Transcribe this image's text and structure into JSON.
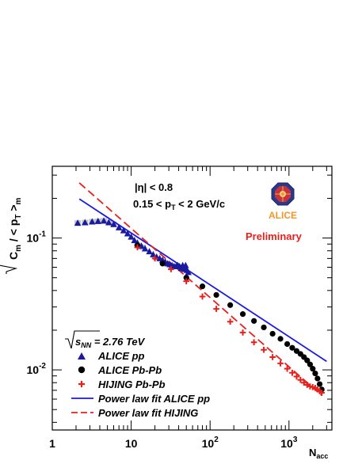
{
  "chart_data": {
    "type": "scatter",
    "xscale": "log",
    "yscale": "log",
    "xlim": [
      1,
      3500
    ],
    "ylim": [
      0.0035,
      0.35
    ],
    "xlabel": "N",
    "xlabel_sub": "acc",
    "ylabel_parts": [
      "C",
      "m",
      " / < p",
      "T",
      " >",
      "m"
    ],
    "x_ticks": [
      {
        "value": 1,
        "label": "1",
        "sup": ""
      },
      {
        "value": 10,
        "label": "10",
        "sup": ""
      },
      {
        "value": 100,
        "label": "10",
        "sup": "2"
      },
      {
        "value": 1000,
        "label": "10",
        "sup": "3"
      }
    ],
    "y_ticks": [
      {
        "value": 0.01,
        "label": "10",
        "sup": "-2"
      },
      {
        "value": 0.1,
        "label": "10",
        "sup": "-1"
      }
    ],
    "annotations": {
      "eta_cut": "|η| < 0.8",
      "pt_cut": [
        "0.15 < p",
        "T",
        " < 2 GeV/c"
      ],
      "preliminary": "Preliminary",
      "energy": [
        "s",
        "NN",
        " = 2.76 TeV"
      ],
      "logo_text": "ALICE"
    },
    "legend": {
      "placement": "bottom-left",
      "entries": [
        {
          "label": "ALICE pp",
          "marker": "triangle",
          "color": "#1a1aa0"
        },
        {
          "label": "ALICE Pb-Pb",
          "marker": "circle",
          "color": "#000000"
        },
        {
          "label": "HIJING Pb-Pb",
          "marker": "cross",
          "color": "#e8201c"
        },
        {
          "label": "Power law fit ALICE pp",
          "marker": "solid-line",
          "color": "#1a1ae6"
        },
        {
          "label": "Power law fit HIJING",
          "marker": "dashed-line",
          "color": "#e8201c"
        }
      ]
    },
    "series": [
      {
        "name": "ALICE pp",
        "marker": "triangle",
        "color": "#1a1aa0",
        "x": [
          2.1,
          2.6,
          3.2,
          3.8,
          4.5,
          5.2,
          6.0,
          7.0,
          8.0,
          9.0,
          10.0,
          11.0,
          12.0,
          13.5,
          15.0,
          17.0,
          19.0,
          21.0,
          23.0,
          25.0,
          27.0,
          29.0,
          31.0,
          33.0,
          35.0,
          37.0,
          39.0,
          41.0,
          43.0,
          45.0,
          47.0,
          49.0,
          51.0,
          53.0
        ],
        "y": [
          0.13,
          0.131,
          0.133,
          0.134,
          0.135,
          0.131,
          0.127,
          0.12,
          0.114,
          0.108,
          0.102,
          0.096,
          0.092,
          0.087,
          0.083,
          0.079,
          0.075,
          0.072,
          0.07,
          0.068,
          0.066,
          0.064,
          0.063,
          0.062,
          0.061,
          0.061,
          0.062,
          0.061,
          0.059,
          0.062,
          0.058,
          0.062,
          0.057,
          0.055
        ]
      },
      {
        "name": "ALICE Pb-Pb",
        "marker": "circle",
        "color": "#000000",
        "x": [
          12,
          25,
          50,
          80,
          120,
          180,
          260,
          360,
          480,
          620,
          780,
          950,
          1100,
          1250,
          1400,
          1550,
          1700,
          1850,
          2000,
          2150,
          2300,
          2450,
          2600
        ],
        "y": [
          0.088,
          0.064,
          0.05,
          0.043,
          0.037,
          0.031,
          0.0265,
          0.0235,
          0.021,
          0.0188,
          0.0172,
          0.0157,
          0.0147,
          0.0139,
          0.0132,
          0.0125,
          0.0118,
          0.011,
          0.0102,
          0.0094,
          0.0086,
          0.0078,
          0.0071
        ]
      },
      {
        "name": "HIJING Pb-Pb",
        "marker": "cross",
        "color": "#e8201c",
        "x": [
          12,
          20,
          32,
          50,
          80,
          120,
          180,
          260,
          360,
          480,
          620,
          780,
          950,
          1100,
          1250,
          1400,
          1550,
          1700,
          1850,
          2000,
          2150,
          2300,
          2450,
          2600
        ],
        "y": [
          0.085,
          0.07,
          0.058,
          0.047,
          0.036,
          0.029,
          0.0232,
          0.0192,
          0.0162,
          0.0142,
          0.0125,
          0.0112,
          0.0102,
          0.0095,
          0.0089,
          0.0084,
          0.008,
          0.0077,
          0.0075,
          0.0074,
          0.0073,
          0.0071,
          0.0069,
          0.0067
        ]
      }
    ],
    "fits": [
      {
        "name": "Power law fit ALICE pp",
        "style": "solid",
        "color": "#1a1ae6",
        "x": [
          2.2,
          3000
        ],
        "y": [
          0.198,
          0.0116
        ]
      },
      {
        "name": "Power law fit HIJING",
        "style": "dashed",
        "color": "#e8201c",
        "x": [
          2.2,
          2600
        ],
        "y": [
          0.262,
          0.0064
        ]
      }
    ],
    "systematic_boxes": {
      "color": "#c4c4c4",
      "x": [
        2.1,
        2.6,
        3.2,
        3.8,
        4.5,
        5.2,
        6.0,
        12,
        14
      ],
      "y": [
        0.13,
        0.131,
        0.133,
        0.134,
        0.135,
        0.131,
        0.127,
        0.088,
        0.085
      ]
    }
  }
}
